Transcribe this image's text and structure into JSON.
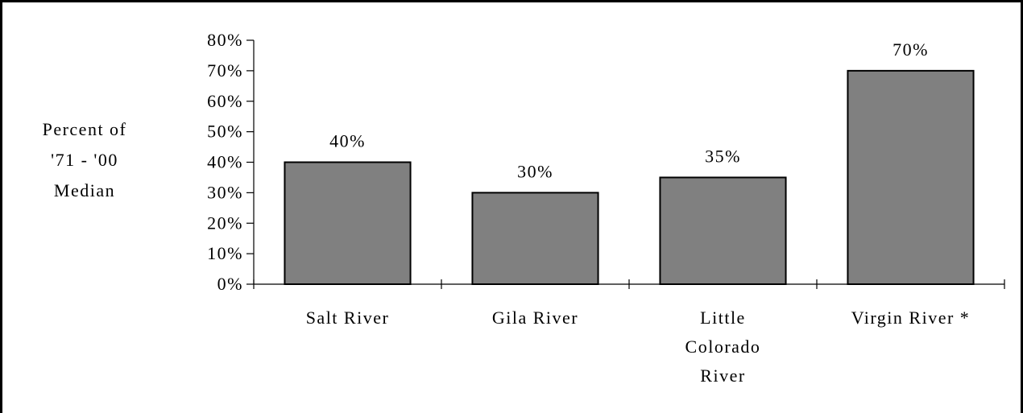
{
  "chart_data": {
    "type": "bar",
    "title": "",
    "ylabel_lines": [
      "Percent of",
      "'71 - '00",
      "Median"
    ],
    "xlabel": "",
    "categories": [
      [
        "Salt River"
      ],
      [
        "Gila River"
      ],
      [
        "Little",
        "Colorado",
        "River"
      ],
      [
        "Virgin River *"
      ]
    ],
    "values": [
      40,
      30,
      35,
      70
    ],
    "data_labels": [
      "40%",
      "30%",
      "35%",
      "70%"
    ],
    "ylim": [
      0,
      80
    ],
    "yticks": [
      0,
      10,
      20,
      30,
      40,
      50,
      60,
      70,
      80
    ],
    "ytick_labels": [
      "0%",
      "10%",
      "20%",
      "30%",
      "40%",
      "50%",
      "60%",
      "70%",
      "80%"
    ],
    "grid": false,
    "bar_color": "#808080"
  }
}
